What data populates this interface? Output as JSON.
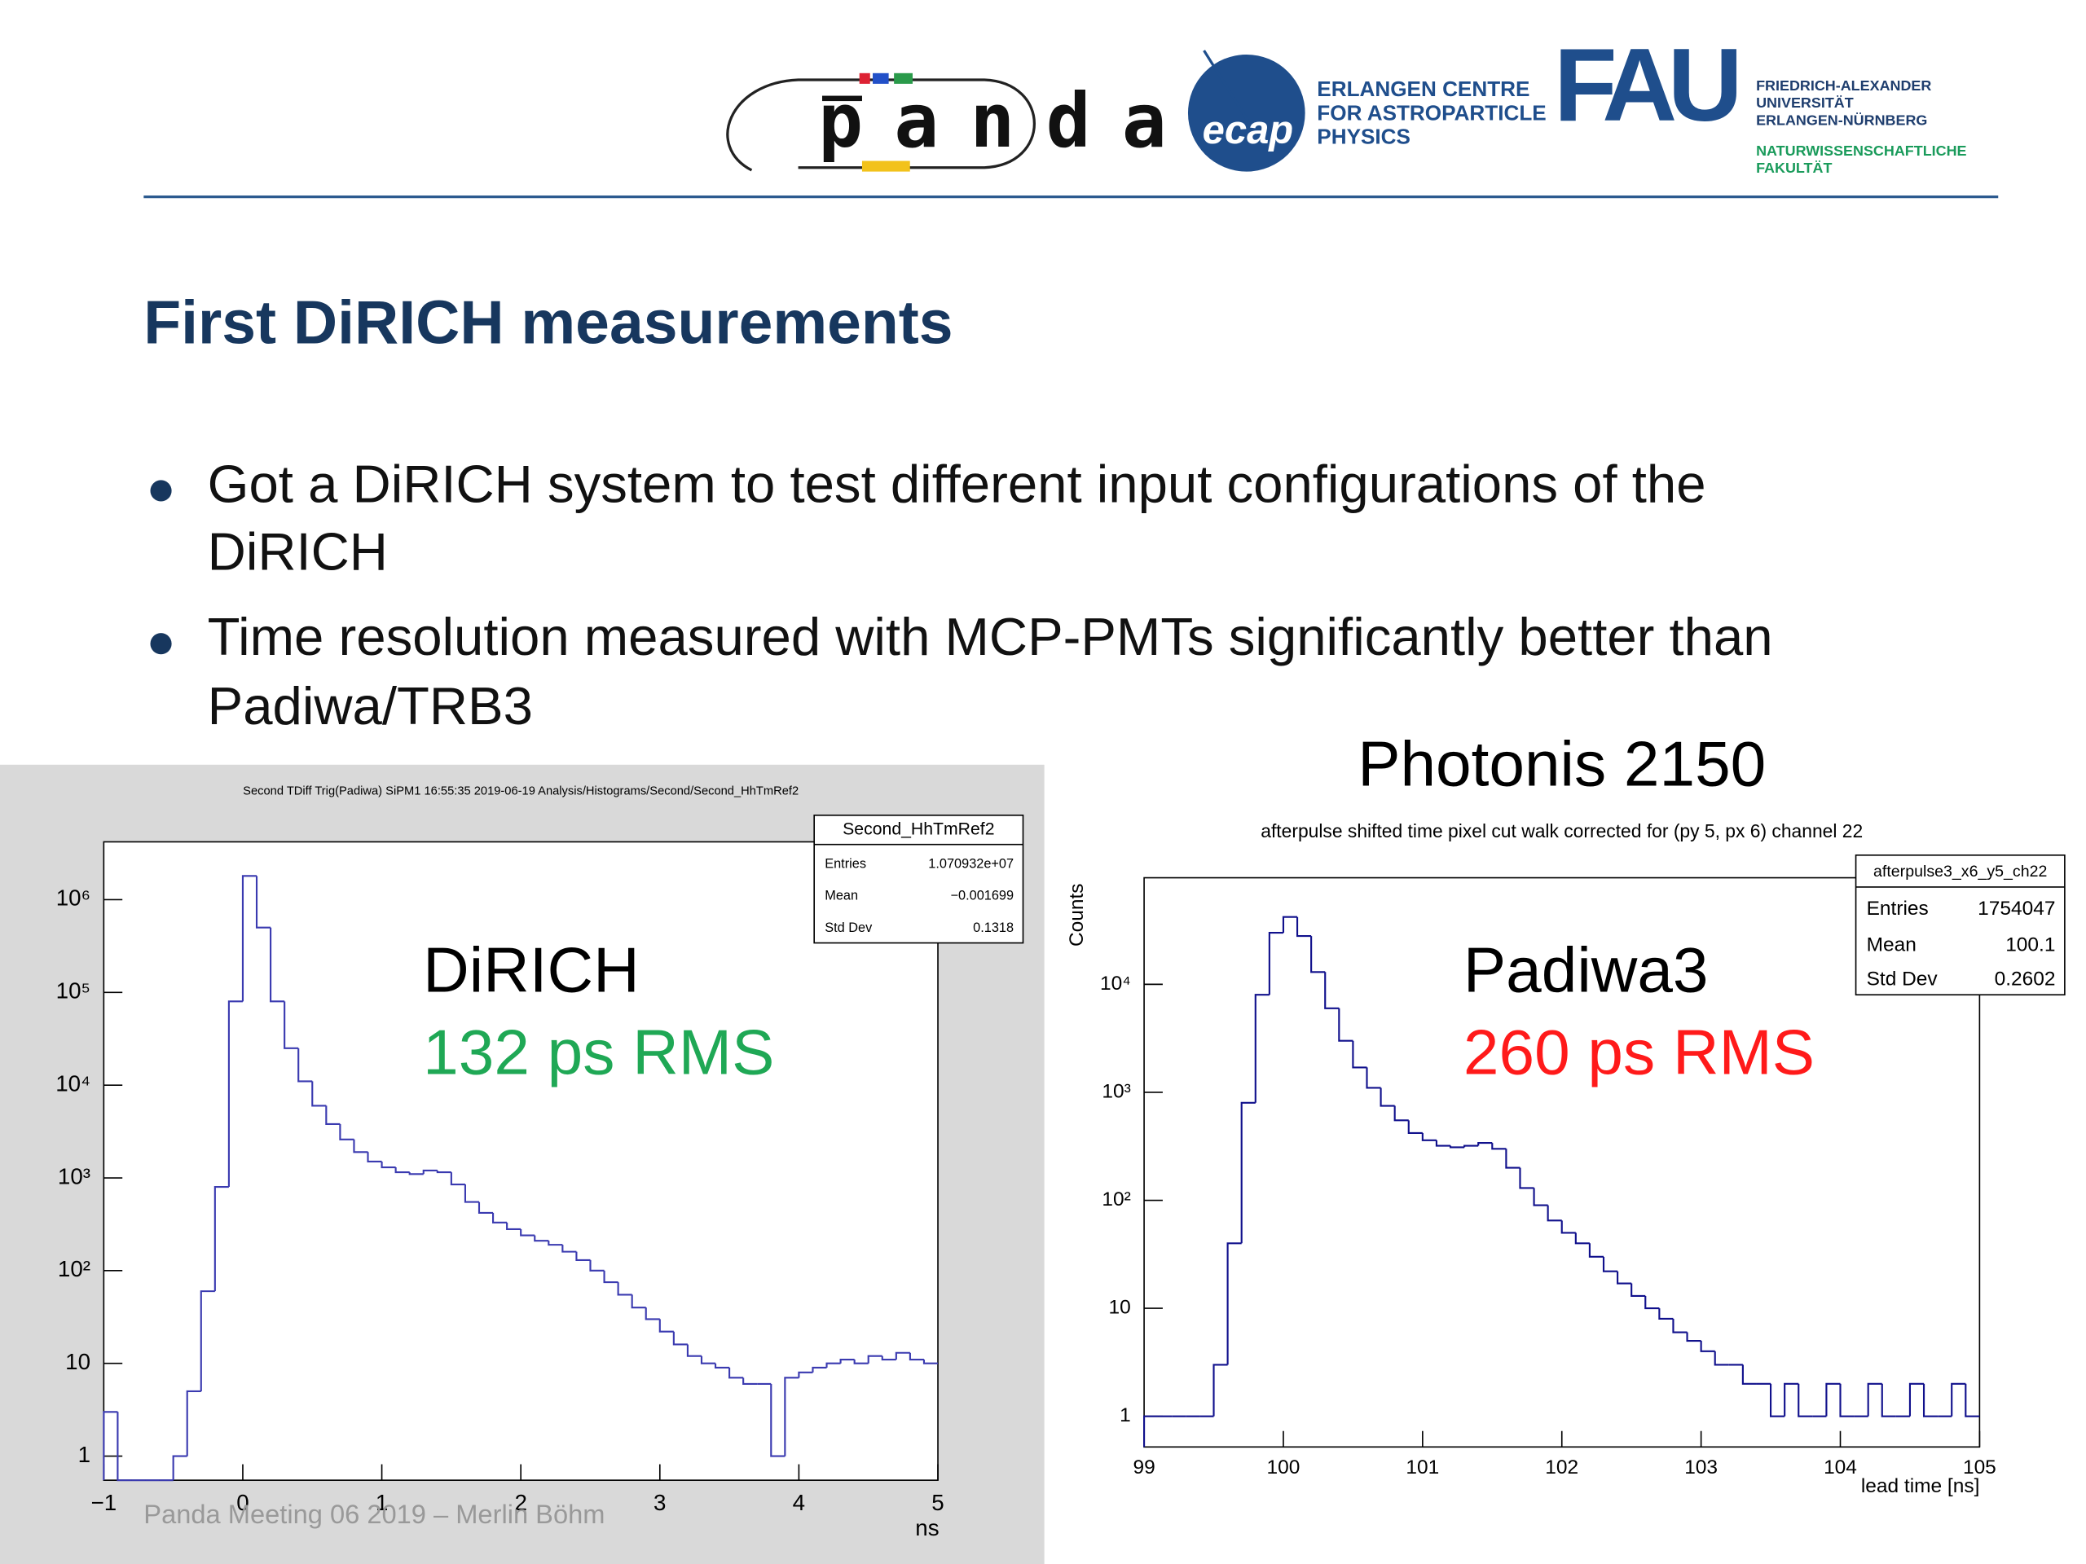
{
  "header": {
    "panda": "panda",
    "ecap": "ecap",
    "ecap_name": [
      "ERLANGEN CENTRE",
      "FOR ASTROPARTICLE",
      "PHYSICS"
    ],
    "fau": "FAU",
    "fau_name": [
      "FRIEDRICH-ALEXANDER",
      "UNIVERSITÄT",
      "ERLANGEN-NÜRNBERG"
    ],
    "faculty": [
      "NATURWISSENSCHAFTLICHE",
      "FAKULTÄT"
    ]
  },
  "title": "First DiRICH measurements",
  "bullets": [
    [
      "Got a DiRICH system to test different input configurations of the",
      "DiRICH"
    ],
    [
      "Time resolution measured with MCP-PMTs significantly better than",
      "Padiwa/TRB3"
    ]
  ],
  "footer": "Panda Meeting 06 2019 – Merlin Böhm",
  "chart_data": [
    {
      "type": "histogram",
      "title": "Second TDiff Trig(Padiwa) SiPM1  16:55:35  2019-06-19  Analysis/Histograms/Second/Second_HhTmRef2",
      "xlabel": "ns",
      "color": "#3a3ab0",
      "log_y": true,
      "bins": [
        -1,
        -0.9,
        -0.8,
        -0.7,
        -0.6,
        -0.5,
        -0.4,
        -0.3,
        -0.2,
        -0.1,
        0,
        0.1,
        0.2,
        0.3,
        0.4,
        0.5,
        0.6,
        0.7,
        0.8,
        0.9,
        1,
        1.1,
        1.2,
        1.3,
        1.4,
        1.5,
        1.6,
        1.7,
        1.8,
        1.9,
        2,
        2.1,
        2.2,
        2.3,
        2.4,
        2.5,
        2.6,
        2.7,
        2.8,
        2.9,
        3,
        3.1,
        3.2,
        3.3,
        3.4,
        3.5,
        3.6,
        3.7,
        3.8,
        3.9,
        4,
        4.1,
        4.2,
        4.3,
        4.4,
        4.5,
        4.6,
        4.7,
        4.8,
        4.9,
        5
      ],
      "values": [
        3,
        0,
        0,
        0,
        0,
        1,
        5,
        60,
        800,
        80000,
        1800000,
        500000,
        80000,
        25000,
        11000,
        6000,
        3800,
        2600,
        1900,
        1500,
        1300,
        1150,
        1100,
        1200,
        1150,
        850,
        550,
        420,
        330,
        280,
        240,
        210,
        190,
        160,
        130,
        100,
        75,
        55,
        40,
        30,
        22,
        16,
        12,
        10,
        9,
        7,
        6,
        6,
        1,
        7,
        8,
        9,
        10,
        11,
        10,
        12,
        11,
        13,
        11,
        10
      ],
      "xlim": [
        -1,
        5
      ],
      "xticks": [
        {
          "value": -1,
          "label": "−1"
        },
        0,
        1,
        2,
        3,
        4,
        5
      ],
      "ylim": [
        0.55,
        4200000
      ],
      "yticks": [
        1,
        10,
        {
          "value": 100,
          "label": "10²"
        },
        {
          "value": 1000,
          "label": "10³"
        },
        {
          "value": 10000,
          "label": "10⁴"
        },
        {
          "value": 100000,
          "label": "10⁵"
        },
        {
          "value": 1000000,
          "label": "10⁶"
        }
      ],
      "stats": {
        "name": "Second_HhTmRef2",
        "rows": [
          [
            "Entries",
            "1.070932e+07"
          ],
          [
            "Mean",
            "−0.001699"
          ],
          [
            "Std Dev",
            "0.1318"
          ]
        ]
      },
      "annotations": [
        {
          "text": "DiRICH",
          "color": "#000000"
        },
        {
          "text": "132 ps RMS",
          "color": "#1fa855"
        }
      ]
    },
    {
      "type": "histogram",
      "heading": "Photonis 2150",
      "title": "afterpulse shifted time pixel cut walk corrected for (py 5, px 6) channel 22",
      "xlabel": "lead time  [ns]",
      "ylabel": "Counts",
      "color": "#10108c",
      "log_y": true,
      "bins": [
        99,
        99.1,
        99.2,
        99.3,
        99.4,
        99.5,
        99.6,
        99.7,
        99.8,
        99.9,
        100,
        100.1,
        100.2,
        100.3,
        100.4,
        100.5,
        100.6,
        100.7,
        100.8,
        100.9,
        101,
        101.1,
        101.2,
        101.3,
        101.4,
        101.5,
        101.6,
        101.7,
        101.8,
        101.9,
        102,
        102.1,
        102.2,
        102.3,
        102.4,
        102.5,
        102.6,
        102.7,
        102.8,
        102.9,
        103,
        103.1,
        103.2,
        103.3,
        103.4,
        103.5,
        103.6,
        103.7,
        103.8,
        103.9,
        104,
        104.1,
        104.2,
        104.3,
        104.4,
        104.5,
        104.6,
        104.7,
        104.8,
        104.9,
        105
      ],
      "values": [
        1,
        1,
        1,
        1,
        1,
        3,
        40,
        800,
        8000,
        30000,
        42000,
        28000,
        13000,
        6000,
        3000,
        1700,
        1100,
        750,
        550,
        420,
        360,
        320,
        310,
        320,
        340,
        300,
        200,
        130,
        90,
        65,
        50,
        40,
        30,
        22,
        17,
        13,
        10,
        8,
        6,
        5,
        4,
        3,
        3,
        2,
        2,
        1,
        2,
        1,
        1,
        2,
        1,
        1,
        2,
        1,
        1,
        2,
        1,
        1,
        2,
        1
      ],
      "xlim": [
        99,
        105
      ],
      "xticks": [
        99,
        100,
        101,
        102,
        103,
        104,
        105
      ],
      "ylim": [
        0.52,
        97000
      ],
      "yticks": [
        1,
        10,
        {
          "value": 100,
          "label": "10²"
        },
        {
          "value": 1000,
          "label": "10³"
        },
        {
          "value": 10000,
          "label": "10⁴"
        }
      ],
      "stats": {
        "name": "afterpulse3_x6_y5_ch22",
        "rows": [
          [
            "Entries",
            "1754047"
          ],
          [
            "Mean",
            "100.1"
          ],
          [
            "Std Dev",
            "0.2602"
          ]
        ]
      },
      "annotations": [
        {
          "text": "Padiwa3",
          "color": "#000000"
        },
        {
          "text": "260 ps RMS",
          "color": "#ff1a1a"
        }
      ]
    }
  ]
}
